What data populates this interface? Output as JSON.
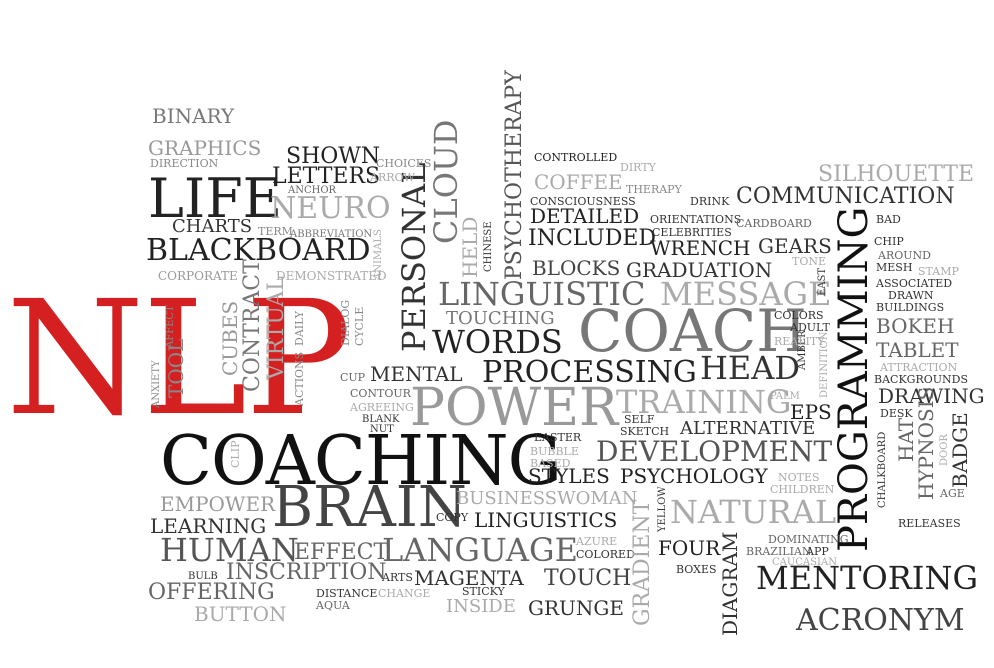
{
  "words": [
    {
      "key": "nlp",
      "text": "NLP",
      "color": "#d42020"
    },
    {
      "key": "coaching",
      "text": "COACHING",
      "color": "#111111"
    },
    {
      "key": "brain",
      "text": "BRAIN",
      "color": "#444444"
    },
    {
      "key": "coach",
      "text": "COACH",
      "color": "#777777"
    },
    {
      "key": "power",
      "text": "POWER",
      "color": "#999999"
    },
    {
      "key": "life",
      "text": "LIFE",
      "color": "#222222"
    },
    {
      "key": "programming",
      "text": "PROGRAMMING",
      "color": "#111111"
    },
    {
      "key": "mentoring",
      "text": "MENTORING",
      "color": "#222222"
    },
    {
      "key": "acronym",
      "text": "ACRONYM",
      "color": "#444444"
    },
    {
      "key": "blackboard",
      "text": "BLACKBOARD",
      "color": "#222222"
    },
    {
      "key": "neuro",
      "text": "NEURO",
      "color": "#aaaaaa"
    },
    {
      "key": "personal",
      "text": "PERSONAL",
      "color": "#333333"
    },
    {
      "key": "cloud",
      "text": "CLOUD",
      "color": "#777777"
    },
    {
      "key": "psychotherapy",
      "text": "PSYCHOTHERAPY",
      "color": "#555555"
    },
    {
      "key": "linguistic",
      "text": "LINGUISTIC",
      "color": "#666666"
    },
    {
      "key": "message",
      "text": "MESSAGE",
      "color": "#aaaaaa"
    },
    {
      "key": "words",
      "text": "WORDS",
      "color": "#222222"
    },
    {
      "key": "processing",
      "text": "PROCESSING",
      "color": "#222222"
    },
    {
      "key": "head",
      "text": "HEAD",
      "color": "#333333"
    },
    {
      "key": "training",
      "text": "TRAINING",
      "color": "#aaaaaa"
    },
    {
      "key": "development",
      "text": "DEVELOPMENT",
      "color": "#555555"
    },
    {
      "key": "natural",
      "text": "NATURAL",
      "color": "#aaaaaa"
    },
    {
      "key": "human",
      "text": "HUMAN",
      "color": "#555555"
    },
    {
      "key": "language",
      "text": "LANGUAGE",
      "color": "#666666"
    },
    {
      "key": "communication",
      "text": "COMMUNICATION",
      "color": "#333333"
    },
    {
      "key": "silhouette",
      "text": "SILHOUETTE",
      "color": "#aaaaaa"
    },
    {
      "key": "binary",
      "text": "BINARY",
      "color": "#777777"
    },
    {
      "key": "graphics",
      "text": "GRAPHICS",
      "color": "#999999"
    },
    {
      "key": "direction",
      "text": "DIRECTION",
      "color": "#888888"
    },
    {
      "key": "shown",
      "text": "SHOWN",
      "color": "#222222"
    },
    {
      "key": "letters",
      "text": "LETTERS",
      "color": "#222222"
    },
    {
      "key": "anchor",
      "text": "ANCHOR",
      "color": "#666666"
    },
    {
      "key": "choices",
      "text": "CHOICES",
      "color": "#888888"
    },
    {
      "key": "arrow",
      "text": "ARROW",
      "color": "#aaaaaa"
    },
    {
      "key": "charts",
      "text": "CHARTS",
      "color": "#333333"
    },
    {
      "key": "term",
      "text": "TERM",
      "color": "#888888"
    },
    {
      "key": "abbreviation",
      "text": "ABBREVIATION",
      "color": "#777777"
    },
    {
      "key": "animals",
      "text": "ANIMALS",
      "color": "#aaaaaa"
    },
    {
      "key": "corporate",
      "text": "CORPORATE",
      "color": "#999999"
    },
    {
      "key": "demonstrated",
      "text": "DEMONSTRATED",
      "color": "#aaaaaa"
    },
    {
      "key": "contract",
      "text": "CONTRACT",
      "color": "#777777"
    },
    {
      "key": "virtual",
      "text": "VIRTUAL",
      "color": "#aaaaaa"
    },
    {
      "key": "daily",
      "text": "DAILY",
      "color": "#888888"
    },
    {
      "key": "actions",
      "text": "ACTIONS",
      "color": "#888888"
    },
    {
      "key": "dialog",
      "text": "DIALOG",
      "color": "#888888"
    },
    {
      "key": "cycle",
      "text": "CYCLE",
      "color": "#888888"
    },
    {
      "key": "cubes",
      "text": "CUBES",
      "color": "#999999"
    },
    {
      "key": "tool",
      "text": "TOOL",
      "color": "#888888"
    },
    {
      "key": "affect",
      "text": "AFFECT",
      "color": "#888888"
    },
    {
      "key": "anxiety",
      "text": "ANXIETY",
      "color": "#888888"
    },
    {
      "key": "controlled",
      "text": "CONTROLLED",
      "color": "#222222"
    },
    {
      "key": "dirty",
      "text": "DIRTY",
      "color": "#aaaaaa"
    },
    {
      "key": "coffee",
      "text": "COFFEE",
      "color": "#aaaaaa"
    },
    {
      "key": "therapy",
      "text": "THERAPY",
      "color": "#888888"
    },
    {
      "key": "consciousness",
      "text": "CONSCIOUSNESS",
      "color": "#333333"
    },
    {
      "key": "drink",
      "text": "DRINK",
      "color": "#333333"
    },
    {
      "key": "detailed",
      "text": "DETAILED",
      "color": "#222222"
    },
    {
      "key": "included",
      "text": "INCLUDED",
      "color": "#222222"
    },
    {
      "key": "orientations",
      "text": "ORIENTATIONS",
      "color": "#333333"
    },
    {
      "key": "celebrities",
      "text": "CELEBRITIES",
      "color": "#333333"
    },
    {
      "key": "cardboard",
      "text": "CARDBOARD",
      "color": "#666666"
    },
    {
      "key": "wrench",
      "text": "WRENCH",
      "color": "#222222"
    },
    {
      "key": "gears",
      "text": "GEARS",
      "color": "#333333"
    },
    {
      "key": "held",
      "text": "HELD",
      "color": "#aaaaaa"
    },
    {
      "key": "chinese",
      "text": "CHINESE",
      "color": "#333333"
    },
    {
      "key": "blocks",
      "text": "BLOCKS",
      "color": "#444444"
    },
    {
      "key": "graduation",
      "text": "GRADUATION",
      "color": "#333333"
    },
    {
      "key": "tone",
      "text": "TONE",
      "color": "#aaaaaa"
    },
    {
      "key": "east",
      "text": "EAST",
      "color": "#333333"
    },
    {
      "key": "touching",
      "text": "TOUCHING",
      "color": "#777777"
    },
    {
      "key": "mental",
      "text": "MENTAL",
      "color": "#333333"
    },
    {
      "key": "cup",
      "text": "CUP",
      "color": "#666666"
    },
    {
      "key": "contour",
      "text": "CONTOUR",
      "color": "#666666"
    },
    {
      "key": "agreeing",
      "text": "AGREEING",
      "color": "#aaaaaa"
    },
    {
      "key": "blank",
      "text": "BLANK",
      "color": "#333333"
    },
    {
      "key": "nut",
      "text": "NUT",
      "color": "#333333"
    },
    {
      "key": "clip",
      "text": "CLIP",
      "color": "#aaaaaa"
    },
    {
      "key": "amber",
      "text": "AMBER",
      "color": "#333333"
    },
    {
      "key": "colors",
      "text": "COLORS",
      "color": "#333333"
    },
    {
      "key": "adult",
      "text": "ADULT",
      "color": "#333333"
    },
    {
      "key": "reality",
      "text": "REALITY",
      "color": "#aaaaaa"
    },
    {
      "key": "definition",
      "text": "DEFINITION",
      "color": "#aaaaaa"
    },
    {
      "key": "palm",
      "text": "PALM",
      "color": "#aaaaaa"
    },
    {
      "key": "eps",
      "text": "EPS",
      "color": "#222222"
    },
    {
      "key": "self",
      "text": "SELF",
      "color": "#333333"
    },
    {
      "key": "sketch",
      "text": "SKETCH",
      "color": "#333333"
    },
    {
      "key": "alternative",
      "text": "ALTERNATIVE",
      "color": "#333333"
    },
    {
      "key": "easter",
      "text": "EASTER",
      "color": "#333333"
    },
    {
      "key": "bubble",
      "text": "BUBBLE",
      "color": "#aaaaaa"
    },
    {
      "key": "based",
      "text": "BASED",
      "color": "#aaaaaa"
    },
    {
      "key": "styles",
      "text": "STYLES",
      "color": "#222222"
    },
    {
      "key": "psychology",
      "text": "PSYCHOLOGY",
      "color": "#222222"
    },
    {
      "key": "notes",
      "text": "NOTES",
      "color": "#aaaaaa"
    },
    {
      "key": "children",
      "text": "CHILDREN",
      "color": "#aaaaaa"
    },
    {
      "key": "businesswoman",
      "text": "BUSINESSWOMAN",
      "color": "#aaaaaa"
    },
    {
      "key": "copy",
      "text": "COPY",
      "color": "#333333"
    },
    {
      "key": "linguistics",
      "text": "LINGUISTICS",
      "color": "#222222"
    },
    {
      "key": "yellow",
      "text": "YELLOW",
      "color": "#333333"
    },
    {
      "key": "empower",
      "text": "EMPOWER",
      "color": "#999999"
    },
    {
      "key": "learning",
      "text": "LEARNING",
      "color": "#333333"
    },
    {
      "key": "effect",
      "text": "EFFECT",
      "color": "#666666"
    },
    {
      "key": "azure",
      "text": "AZURE",
      "color": "#aaaaaa"
    },
    {
      "key": "colored",
      "text": "COLORED",
      "color": "#333333"
    },
    {
      "key": "four",
      "text": "FOUR",
      "color": "#222222"
    },
    {
      "key": "diagram",
      "text": "DIAGRAM",
      "color": "#333333"
    },
    {
      "key": "dominating",
      "text": "DOMINATING",
      "color": "#666666"
    },
    {
      "key": "brazilian",
      "text": "BRAZILIAN",
      "color": "#666666"
    },
    {
      "key": "app",
      "text": "APP",
      "color": "#333333"
    },
    {
      "key": "caucasian",
      "text": "CAUCASIAN",
      "color": "#aaaaaa"
    },
    {
      "key": "bulb",
      "text": "BULB",
      "color": "#333333"
    },
    {
      "key": "inscription",
      "text": "INSCRIPTION",
      "color": "#666666"
    },
    {
      "key": "arts",
      "text": "ARTS",
      "color": "#333333"
    },
    {
      "key": "magenta",
      "text": "MAGENTA",
      "color": "#333333"
    },
    {
      "key": "touch",
      "text": "TOUCH",
      "color": "#444444"
    },
    {
      "key": "gradient",
      "text": "GRADIENT",
      "color": "#aaaaaa"
    },
    {
      "key": "offering",
      "text": "OFFERING",
      "color": "#666666"
    },
    {
      "key": "distance",
      "text": "DISTANCE",
      "color": "#333333"
    },
    {
      "key": "aqua",
      "text": "AQUA",
      "color": "#666666"
    },
    {
      "key": "change",
      "text": "CHANGE",
      "color": "#aaaaaa"
    },
    {
      "key": "sticky",
      "text": "STICKY",
      "color": "#333333"
    },
    {
      "key": "inside",
      "text": "INSIDE",
      "color": "#aaaaaa"
    },
    {
      "key": "grunge",
      "text": "GRUNGE",
      "color": "#333333"
    },
    {
      "key": "button",
      "text": "BUTTON",
      "color": "#aaaaaa"
    },
    {
      "key": "boxes",
      "text": "BOXES",
      "color": "#333333"
    },
    {
      "key": "bad",
      "text": "BAD",
      "color": "#333333"
    },
    {
      "key": "chip",
      "text": "CHIP",
      "color": "#333333"
    },
    {
      "key": "around",
      "text": "AROUND",
      "color": "#666666"
    },
    {
      "key": "mesh",
      "text": "MESH",
      "color": "#333333"
    },
    {
      "key": "stamp",
      "text": "STAMP",
      "color": "#aaaaaa"
    },
    {
      "key": "associated",
      "text": "ASSOCIATED",
      "color": "#333333"
    },
    {
      "key": "drawn",
      "text": "DRAWN",
      "color": "#333333"
    },
    {
      "key": "buildings",
      "text": "BUILDINGS",
      "color": "#333333"
    },
    {
      "key": "bokeh",
      "text": "BOKEH",
      "color": "#666666"
    },
    {
      "key": "tablet",
      "text": "TABLET",
      "color": "#666666"
    },
    {
      "key": "attraction",
      "text": "ATTRACTION",
      "color": "#aaaaaa"
    },
    {
      "key": "backgrounds",
      "text": "BACKGROUNDS",
      "color": "#333333"
    },
    {
      "key": "drawing",
      "text": "DRAWING",
      "color": "#333333"
    },
    {
      "key": "desk",
      "text": "DESK",
      "color": "#333333"
    },
    {
      "key": "chalkboard",
      "text": "CHALKBOARD",
      "color": "#333333"
    },
    {
      "key": "hat",
      "text": "HAT",
      "color": "#666666"
    },
    {
      "key": "hypnosis",
      "text": "HYPNOSIS",
      "color": "#666666"
    },
    {
      "key": "door",
      "text": "DOOR",
      "color": "#aaaaaa"
    },
    {
      "key": "badge",
      "text": "BADGE",
      "color": "#333333"
    },
    {
      "key": "age",
      "text": "AGE",
      "color": "#666666"
    },
    {
      "key": "releases",
      "text": "RELEASES",
      "color": "#333333"
    }
  ]
}
